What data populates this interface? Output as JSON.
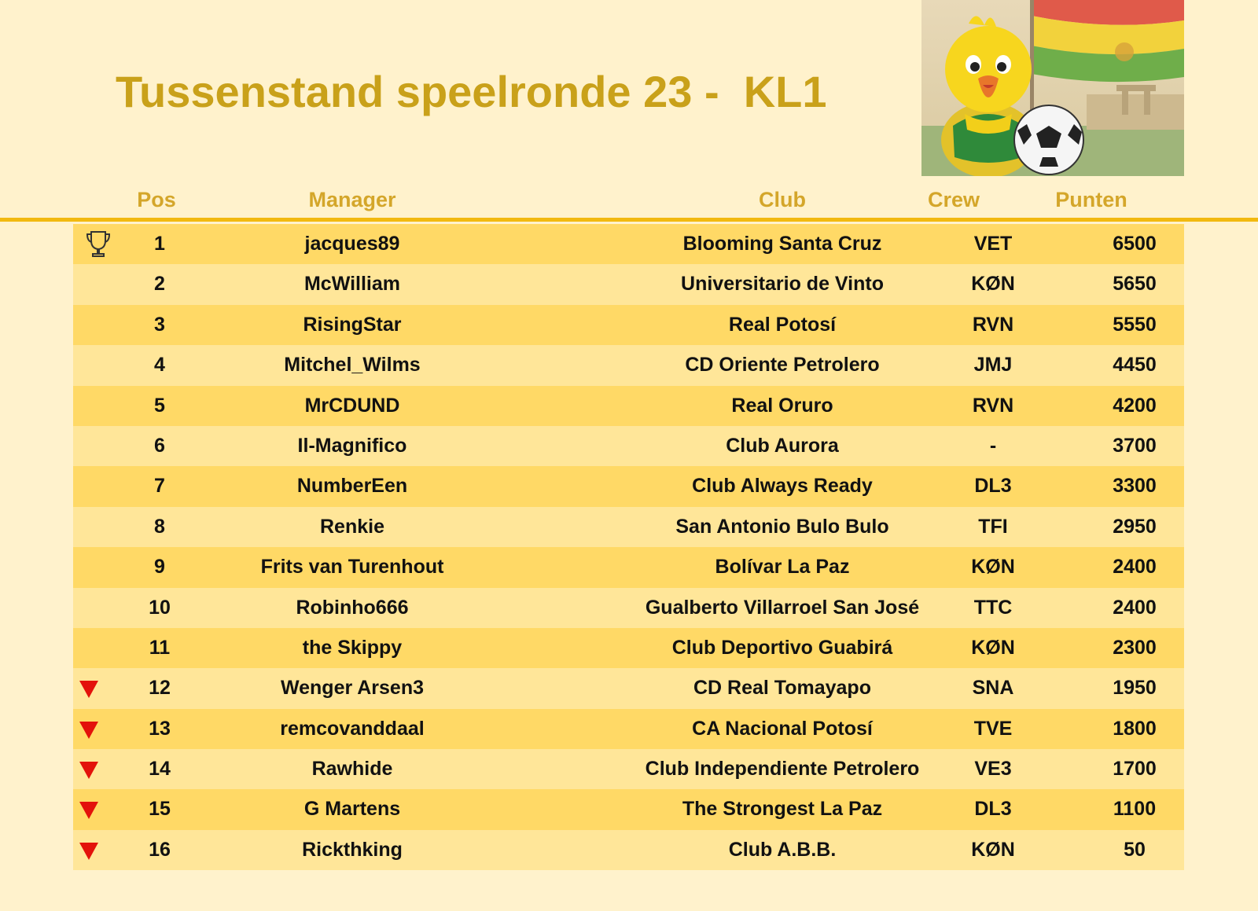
{
  "title": "Tussenstand speelronde 23 -  KL1",
  "columns": {
    "pos": "Pos",
    "manager": "Manager",
    "club": "Club",
    "crew": "Crew",
    "points": "Punten"
  },
  "colors": {
    "background": "#fff2cc",
    "title": "#c9a11a",
    "header_text": "#d4a62a",
    "rule": "#f2b90f",
    "row_odd": "#ffd966",
    "row_even": "#ffe699",
    "relegation": "#e3120b"
  },
  "rows": [
    {
      "pos": "1",
      "manager": "jacques89",
      "club": "Blooming Santa Cruz",
      "crew": "VET",
      "points": "6500",
      "marker": "trophy-icon"
    },
    {
      "pos": "2",
      "manager": "McWilliam",
      "club": "Universitario de Vinto",
      "crew": "KØN",
      "points": "5650",
      "marker": ""
    },
    {
      "pos": "3",
      "manager": "RisingStar",
      "club": "Real Potosí",
      "crew": "RVN",
      "points": "5550",
      "marker": ""
    },
    {
      "pos": "4",
      "manager": "Mitchel_Wilms",
      "club": "CD Oriente Petrolero",
      "crew": "JMJ",
      "points": "4450",
      "marker": ""
    },
    {
      "pos": "5",
      "manager": "MrCDUND",
      "club": "Real Oruro",
      "crew": "RVN",
      "points": "4200",
      "marker": ""
    },
    {
      "pos": "6",
      "manager": "Il-Magnifico",
      "club": "Club Aurora",
      "crew": "-",
      "points": "3700",
      "marker": ""
    },
    {
      "pos": "7",
      "manager": "NumberEen",
      "club": "Club Always Ready",
      "crew": "DL3",
      "points": "3300",
      "marker": ""
    },
    {
      "pos": "8",
      "manager": "Renkie",
      "club": "San Antonio Bulo Bulo",
      "crew": "TFI",
      "points": "2950",
      "marker": ""
    },
    {
      "pos": "9",
      "manager": "Frits van Turenhout",
      "club": "Bolívar La Paz",
      "crew": "KØN",
      "points": "2400",
      "marker": ""
    },
    {
      "pos": "10",
      "manager": "Robinho666",
      "club": "Gualberto Villarroel San José",
      "crew": "TTC",
      "points": "2400",
      "marker": ""
    },
    {
      "pos": "11",
      "manager": "the Skippy",
      "club": "Club Deportivo Guabirá",
      "crew": "KØN",
      "points": "2300",
      "marker": ""
    },
    {
      "pos": "12",
      "manager": "Wenger Arsen3",
      "club": "CD Real Tomayapo",
      "crew": "SNA",
      "points": "1950",
      "marker": "down-arrow-icon"
    },
    {
      "pos": "13",
      "manager": "remcovanddaal",
      "club": "CA Nacional Potosí",
      "crew": "TVE",
      "points": "1800",
      "marker": "down-arrow-icon"
    },
    {
      "pos": "14",
      "manager": "Rawhide",
      "club": "Club Independiente Petrolero",
      "crew": "VE3",
      "points": "1700",
      "marker": "down-arrow-icon"
    },
    {
      "pos": "15",
      "manager": "G Martens",
      "club": "The Strongest La Paz",
      "crew": "DL3",
      "points": "1100",
      "marker": "down-arrow-icon"
    },
    {
      "pos": "16",
      "manager": "Rickthking",
      "club": "Club A.B.B.",
      "crew": "KØN",
      "points": "50",
      "marker": "down-arrow-icon"
    }
  ]
}
